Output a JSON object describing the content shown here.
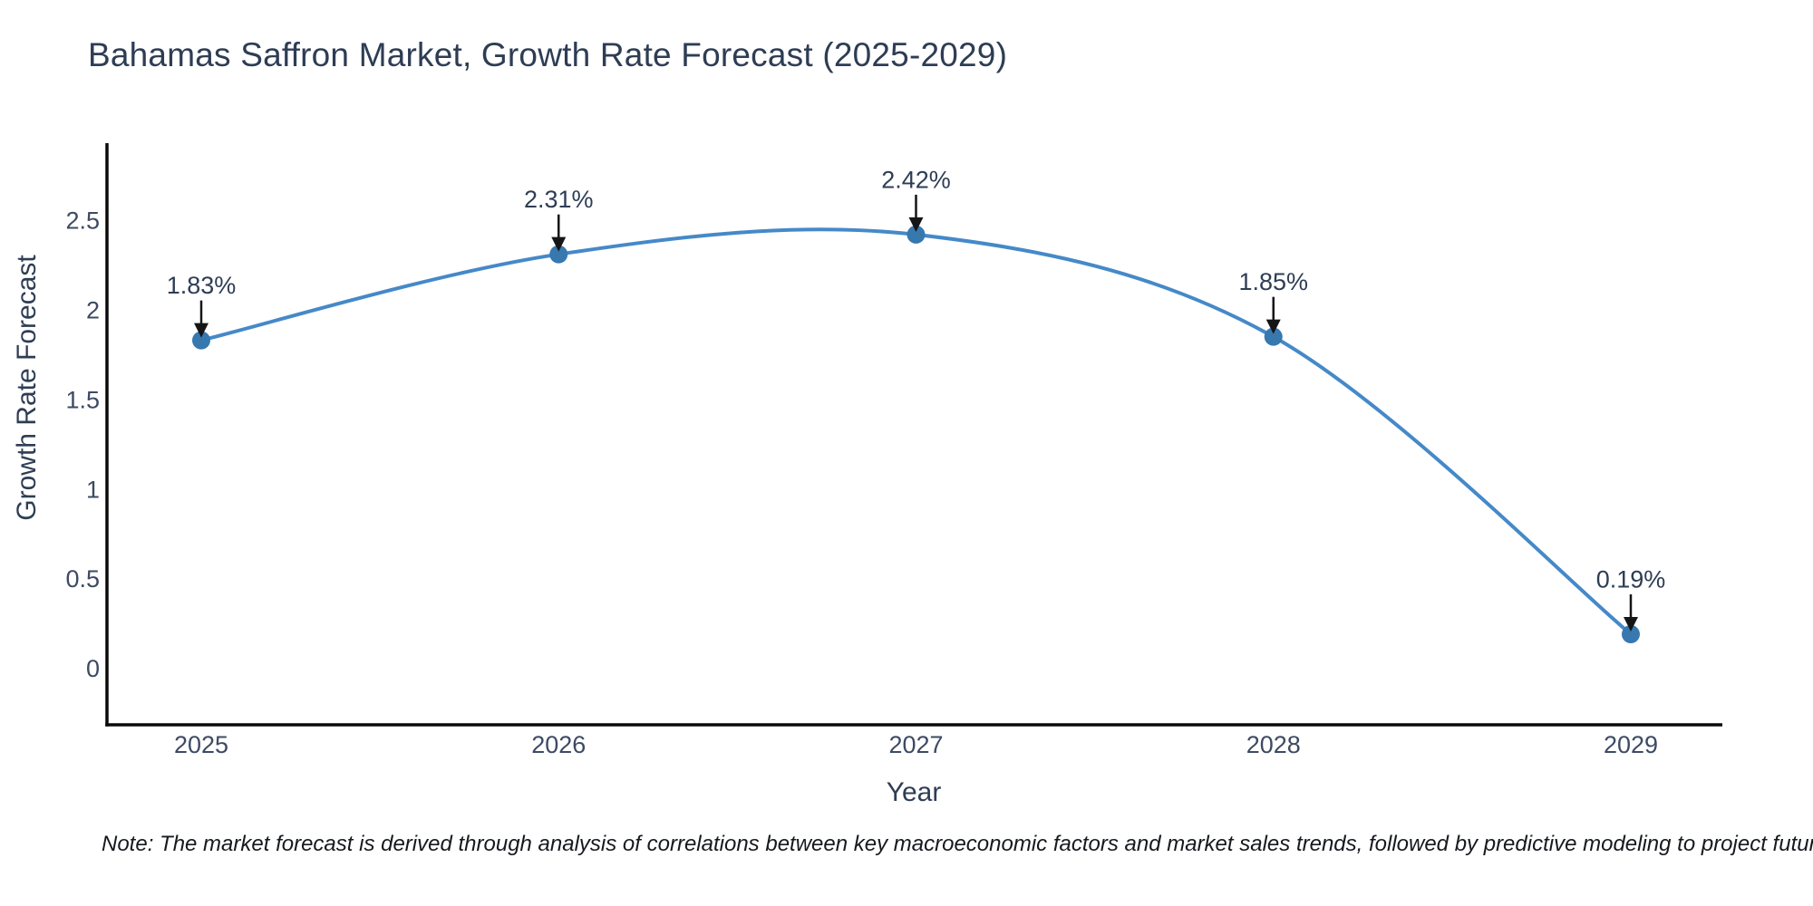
{
  "header": {
    "title": "Bahamas Saffron Market, Growth Rate Forecast (2025-2029)"
  },
  "chart_data": {
    "type": "line",
    "line_shape": "spline",
    "x": [
      2025,
      2026,
      2027,
      2028,
      2029
    ],
    "series": [
      {
        "name": "Growth Rate Forecast",
        "values": [
          1.83,
          2.31,
          2.42,
          1.85,
          0.19
        ]
      }
    ],
    "point_labels": [
      "1.83%",
      "2.31%",
      "2.42%",
      "1.85%",
      "0.19%"
    ],
    "title": "Bahamas Saffron Market, Growth Rate Forecast (2025-2029)",
    "xlabel": "Year",
    "ylabel": "Growth Rate Forecast",
    "xtick_labels": [
      "2025",
      "2026",
      "2027",
      "2028",
      "2029"
    ],
    "ytick_values": [
      0,
      0.5,
      1,
      1.5,
      2,
      2.5
    ],
    "ytick_labels": [
      "0",
      "0.5",
      "1",
      "1.5",
      "2",
      "2.5"
    ],
    "xlim": [
      2024.74,
      2029.26
    ],
    "ylim": [
      -0.32,
      2.93
    ],
    "grid": false,
    "legend": "none",
    "markers": true,
    "annotations_with_arrows": true,
    "colors": {
      "line": "#4589c8",
      "marker": "#3778af",
      "axis": "#0a0a0a",
      "arrow": "#151515",
      "title_text": "#2e3d54",
      "tick_text": "#3d4a63",
      "note_text": "#16191e",
      "background": "#ffffff"
    }
  },
  "note": {
    "text": "Note: The market forecast is derived through analysis of correlations between key macroeconomic factors and market sales trends, followed by predictive modeling to project future sales"
  }
}
